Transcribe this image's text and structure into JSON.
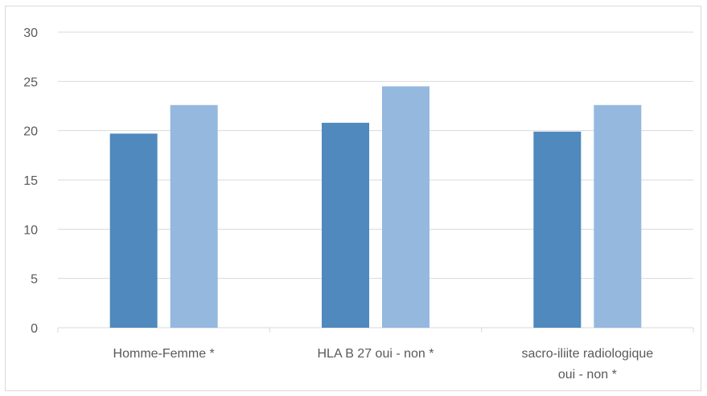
{
  "chart_data": {
    "type": "bar",
    "categories": [
      [
        "Homme-Femme *"
      ],
      [
        "HLA B 27 oui - non *"
      ],
      [
        "sacro-iliite radiologique",
        "oui - non *"
      ]
    ],
    "series": [
      {
        "values": [
          19.7,
          20.8,
          19.9
        ],
        "color": "#4f89bd"
      },
      {
        "values": [
          22.6,
          24.5,
          22.6
        ],
        "color": "#95b8df"
      }
    ],
    "yticks": [
      0,
      5,
      10,
      15,
      20,
      25,
      30
    ],
    "ylim": [
      0,
      30
    ],
    "grid": true,
    "gridColor": "#d9d9d9",
    "title": "",
    "xlabel": "",
    "ylabel": ""
  }
}
